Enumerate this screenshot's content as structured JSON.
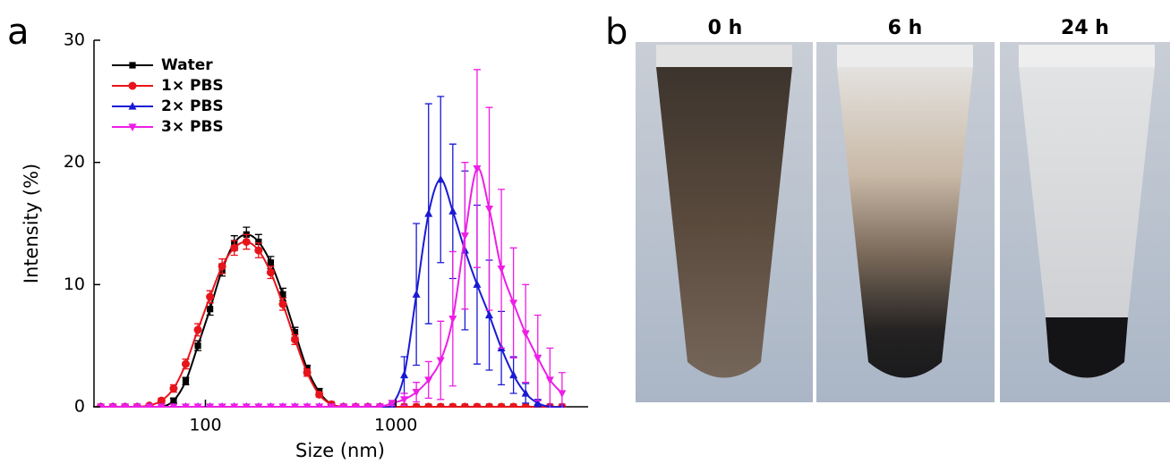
{
  "chart_data": {
    "type": "scatter",
    "panel_label": "a",
    "xlabel": "Size (nm)",
    "ylabel": "Intensity (%)",
    "xscale": "log",
    "xlim": [
      26,
      10000
    ],
    "xticks": [
      100,
      1000
    ],
    "ylim": [
      0,
      30
    ],
    "yticks": [
      0,
      10,
      20,
      30
    ],
    "legend": "upper left",
    "x": [
      28.21,
      32.67,
      37.84,
      43.82,
      50.75,
      58.77,
      68.06,
      78.82,
      91.28,
      105.7,
      122.4,
      141.8,
      164.2,
      190.1,
      220.2,
      255,
      295.3,
      342,
      396.1,
      458.7,
      531.2,
      615.1,
      712.4,
      825,
      955.4,
      1106,
      1281,
      1484,
      1718,
      1990,
      2305,
      2669,
      3091,
      3580,
      4145,
      4801,
      5560,
      6439,
      7456
    ],
    "series": [
      {
        "name": "Water",
        "color": "#000000",
        "marker": "square",
        "values": [
          0,
          0,
          0,
          0,
          0,
          0,
          0.5,
          2.1,
          5,
          8,
          11.2,
          13.4,
          14.1,
          13.5,
          11.8,
          9.2,
          6.1,
          3.1,
          1.2,
          0.2,
          0,
          0,
          0,
          0,
          0,
          0,
          0,
          0,
          0,
          0,
          0,
          0,
          0,
          0,
          0,
          0,
          0,
          0,
          0
        ],
        "errors": [
          0,
          0,
          0,
          0,
          0,
          0,
          0.2,
          0.3,
          0.4,
          0.5,
          0.5,
          0.6,
          0.6,
          0.6,
          0.5,
          0.5,
          0.4,
          0.3,
          0.3,
          0.1,
          0,
          0,
          0,
          0,
          0,
          0,
          0,
          0,
          0,
          0,
          0,
          0,
          0,
          0,
          0,
          0,
          0,
          0,
          0
        ]
      },
      {
        "name": "1× PBS",
        "color": "#e8141b",
        "marker": "circle",
        "values": [
          0,
          0,
          0,
          0,
          0.1,
          0.5,
          1.5,
          3.5,
          6.3,
          9,
          11.5,
          13,
          13.5,
          12.8,
          11,
          8.4,
          5.5,
          2.8,
          1,
          0.2,
          0,
          0,
          0,
          0,
          0,
          0,
          0,
          0,
          0,
          0,
          0,
          0,
          0,
          0,
          0,
          0,
          0,
          0,
          0
        ],
        "errors": [
          0,
          0,
          0,
          0,
          0.1,
          0.2,
          0.3,
          0.4,
          0.5,
          0.5,
          0.6,
          0.6,
          0.6,
          0.6,
          0.5,
          0.5,
          0.4,
          0.3,
          0.2,
          0.1,
          0,
          0,
          0,
          0,
          0,
          0,
          0,
          0,
          0,
          0,
          0,
          0,
          0,
          0,
          0,
          0,
          0,
          0,
          0
        ]
      },
      {
        "name": "2× PBS",
        "color": "#1a1ad4",
        "marker": "triangle-up",
        "values": [
          0,
          0,
          0,
          0,
          0,
          0,
          0,
          0,
          0,
          0,
          0,
          0,
          0,
          0,
          0,
          0,
          0,
          0,
          0,
          0,
          0,
          0,
          0,
          0,
          0.2,
          2.6,
          9.2,
          15.8,
          18.6,
          16,
          12.8,
          10,
          7.5,
          4.8,
          2.6,
          1.1,
          0.3,
          0,
          0
        ],
        "errors": [
          0,
          0,
          0,
          0,
          0,
          0,
          0,
          0,
          0,
          0,
          0,
          0,
          0,
          0,
          0,
          0,
          0,
          0,
          0,
          0,
          0,
          0,
          0,
          0,
          0.1,
          1.5,
          5.8,
          9,
          6.8,
          5.5,
          6.5,
          6.5,
          4.5,
          3,
          1.5,
          0.8,
          0.3,
          0,
          0
        ]
      },
      {
        "name": "3× PBS",
        "color": "#ee1ee6",
        "marker": "triangle-down",
        "values": [
          0,
          0,
          0,
          0,
          0,
          0,
          0,
          0,
          0,
          0,
          0,
          0,
          0,
          0,
          0,
          0,
          0,
          0,
          0,
          0,
          0,
          0,
          0,
          0,
          0.3,
          0.6,
          1.2,
          2.2,
          3.8,
          7.2,
          14,
          19.5,
          16.2,
          11.3,
          8.5,
          6,
          4,
          2.2,
          1.1
        ],
        "errors": [
          0,
          0,
          0,
          0,
          0,
          0,
          0,
          0,
          0,
          0,
          0,
          0,
          0,
          0,
          0,
          0,
          0,
          0,
          0,
          0,
          0,
          0,
          0,
          0,
          0.2,
          0.5,
          0.8,
          1.5,
          3.2,
          5.5,
          6,
          8.1,
          8.3,
          6.5,
          4.5,
          4,
          3.5,
          2.6,
          1.7
        ]
      }
    ]
  },
  "photos": {
    "panel_label": "b",
    "labels": [
      "0 h",
      "6 h",
      "24 h"
    ]
  }
}
